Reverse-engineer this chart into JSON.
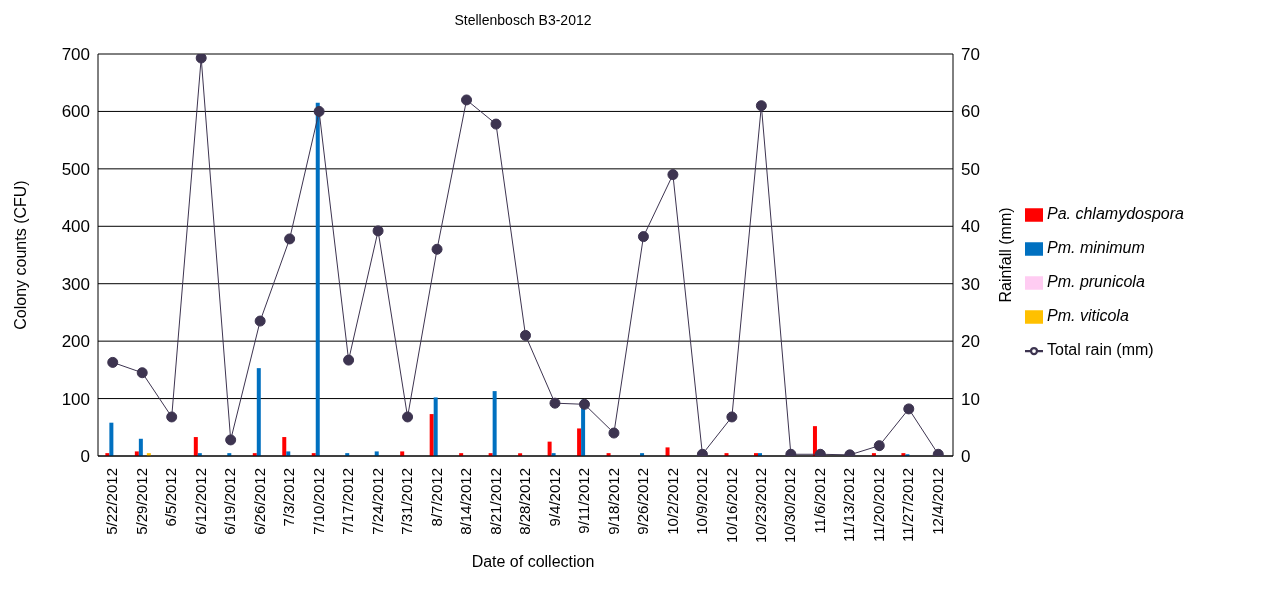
{
  "chart_data": {
    "type": "bar",
    "title": "Stellenbosch B3-2012",
    "xlabel": "Date of collection",
    "ylabel": "Colony counts (CFU)",
    "y2label": "Rainfall (mm)",
    "categories": [
      "5/22/2012",
      "5/29/2012",
      "6/5/2012",
      "6/12/2012",
      "6/19/2012",
      "6/26/2012",
      "7/3/2012",
      "7/10/2012",
      "7/17/2012",
      "7/24/2012",
      "7/31/2012",
      "8/7/2012",
      "8/14/2012",
      "8/21/2012",
      "8/28/2012",
      "9/4/2012",
      "9/11/2012",
      "9/18/2012",
      "9/26/2012",
      "10/2/2012",
      "10/9/2012",
      "10/16/2012",
      "10/23/2012",
      "10/30/2012",
      "11/6/2012",
      "11/13/2012",
      "11/20/2012",
      "11/27/2012",
      "12/4/2012"
    ],
    "series": [
      {
        "name": "Pa. chlamydospora",
        "color": "#ff0000",
        "values": [
          5,
          8,
          0,
          33,
          0,
          5,
          33,
          5,
          0,
          0,
          8,
          73,
          5,
          5,
          5,
          25,
          48,
          5,
          0,
          15,
          null,
          5,
          5,
          null,
          52,
          0,
          5,
          5,
          0
        ]
      },
      {
        "name": "Pm. minimum",
        "color": "#0070c0",
        "values": [
          58,
          30,
          0,
          5,
          5,
          153,
          8,
          615,
          5,
          8,
          0,
          102,
          0,
          113,
          0,
          5,
          98,
          0,
          5,
          0,
          0,
          0,
          5,
          0,
          0,
          0,
          0,
          3,
          0
        ]
      },
      {
        "name": "Pm. prunicola",
        "color": "#ffccf2",
        "values": [
          0,
          0,
          0,
          0,
          0,
          0,
          null,
          0,
          0,
          0,
          0,
          0,
          0,
          0,
          0,
          0,
          0,
          0,
          0,
          0,
          0,
          0,
          0,
          0,
          0,
          0,
          0,
          0,
          0
        ]
      },
      {
        "name": "Pm. viticola",
        "color": "#ffc000",
        "values": [
          0,
          5,
          0,
          0,
          0,
          0,
          0,
          0,
          0,
          0,
          0,
          0,
          0,
          0,
          0,
          0,
          0,
          0,
          0,
          0,
          0,
          0,
          0,
          0,
          0,
          0,
          0,
          0,
          0
        ]
      },
      {
        "name": "Total rain (mm)",
        "type": "line",
        "axis": "y2",
        "color": "#3d3450",
        "marker": "circle",
        "values": [
          16.3,
          14.5,
          6.8,
          69.3,
          2.8,
          23.5,
          37.8,
          60,
          16.7,
          39.2,
          6.8,
          36,
          62,
          57.8,
          21,
          9.2,
          9,
          4,
          38.2,
          49,
          0.3,
          6.8,
          61,
          0.3,
          0.3,
          0.2,
          1.8,
          8.2,
          0.3
        ]
      }
    ],
    "ylim": [
      0,
      700
    ],
    "yticks": [
      0,
      100,
      200,
      300,
      400,
      500,
      600,
      700
    ],
    "y2lim": [
      0,
      70
    ],
    "y2ticks": [
      0,
      10,
      20,
      30,
      40,
      50,
      60,
      70
    ],
    "grid": "y",
    "legend": "right"
  }
}
